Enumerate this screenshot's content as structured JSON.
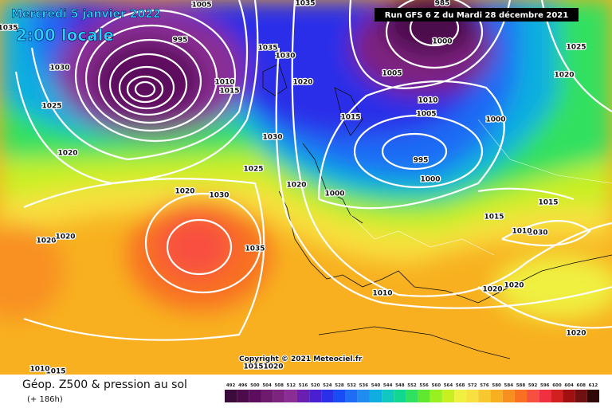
{
  "header": {
    "date": "Mercredi 5 janvier 2022",
    "time": "2:00 locale",
    "run": "Run GFS 6 Z du Mardi 28 décembre 2021"
  },
  "copyright": "Copyright © 2021 Meteociel.fr",
  "footer": {
    "title": "Géop. Z500 & pression au sol",
    "lead": "(+ 186h)"
  },
  "isobar_labels": [
    1005,
    1035,
    1035,
    995,
    1030,
    1025,
    1020,
    1020,
    1030,
    1025,
    1030,
    1035,
    1030,
    1020,
    1015,
    1010,
    1015,
    1010,
    1005,
    1005,
    1000,
    985,
    1000,
    995,
    1000,
    1000,
    1020,
    1025,
    1020,
    1015,
    1015,
    1030,
    1010,
    1035,
    1020,
    1020,
    1010,
    1020,
    1020,
    1020,
    1015,
    1015,
    1020,
    1010
  ],
  "colorbar": {
    "labels": [
      492,
      496,
      500,
      504,
      508,
      512,
      516,
      520,
      524,
      528,
      532,
      536,
      540,
      544,
      548,
      552,
      556,
      560,
      564,
      568,
      572,
      576,
      580,
      584,
      588,
      592,
      596,
      600,
      604,
      608,
      612
    ],
    "colors": [
      "#3b0b3b",
      "#4c0c4c",
      "#5d0d5d",
      "#6e1a6e",
      "#7e2380",
      "#8a2d94",
      "#6a1fb0",
      "#4a1fd0",
      "#2a2fe8",
      "#1a4cf5",
      "#1f6cf5",
      "#1e8cf0",
      "#10aee0",
      "#10c8c0",
      "#10d890",
      "#30e060",
      "#60e830",
      "#98f020",
      "#c8f020",
      "#f0f040",
      "#f8e040",
      "#f8c830",
      "#f8b020",
      "#f89020",
      "#f87020",
      "#f85040",
      "#f03040",
      "#d02020",
      "#a01010",
      "#701010",
      "#300808"
    ]
  }
}
